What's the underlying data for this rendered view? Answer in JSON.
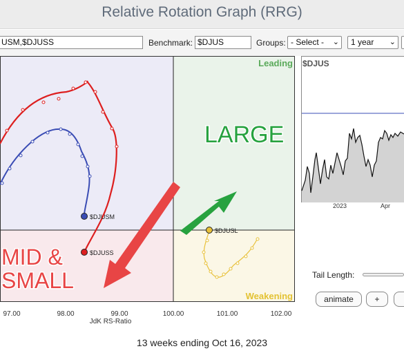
{
  "header": {
    "title": "Relative Rotation Graph (RRG)"
  },
  "toolbar": {
    "symbols_value": "USM,$DJUSS",
    "benchmark_label": "Benchmark:",
    "benchmark_value": "$DJUS",
    "groups_label": "Groups:",
    "groups_selected": "- Select -",
    "period_selected": "1 year"
  },
  "chart": {
    "quadrants": {
      "leading": "Leading",
      "weakening": "Weakening"
    },
    "colors": {
      "leading_bg": "#eaf3ea",
      "weakening_bg": "#fbf7e6",
      "lagging_bg": "#f9e9ec",
      "improving_bg": "#ecebf7",
      "leading_text": "#5aaa5a",
      "weakening_text": "#e3c233",
      "small_cap": "#dd1f1f",
      "mid_cap": "#3a4cb4",
      "large_cap": "#e8c13a",
      "annotation_red": "#e84545",
      "annotation_green": "#27a23f"
    },
    "x_ticks": [
      "97.00",
      "98.00",
      "99.00",
      "100.00",
      "101.00",
      "102.00"
    ],
    "xlabel": "JdK RS-Ratio",
    "series_labels": {
      "mid": "$DJUSM",
      "small": "$DJUSS",
      "large": "$DJUSL"
    },
    "annotations": {
      "large": "LARGE",
      "mid_small_line1": "MID &",
      "mid_small_line2": "SMALL"
    }
  },
  "price_panel": {
    "symbol": "$DJUS",
    "x_labels": [
      "2023",
      "Apr"
    ]
  },
  "controls": {
    "tail_length_label": "Tail Length:",
    "animate_label": "animate",
    "plus_label": "+"
  },
  "footer": {
    "caption": "13 weeks ending Oct 16, 2023"
  }
}
